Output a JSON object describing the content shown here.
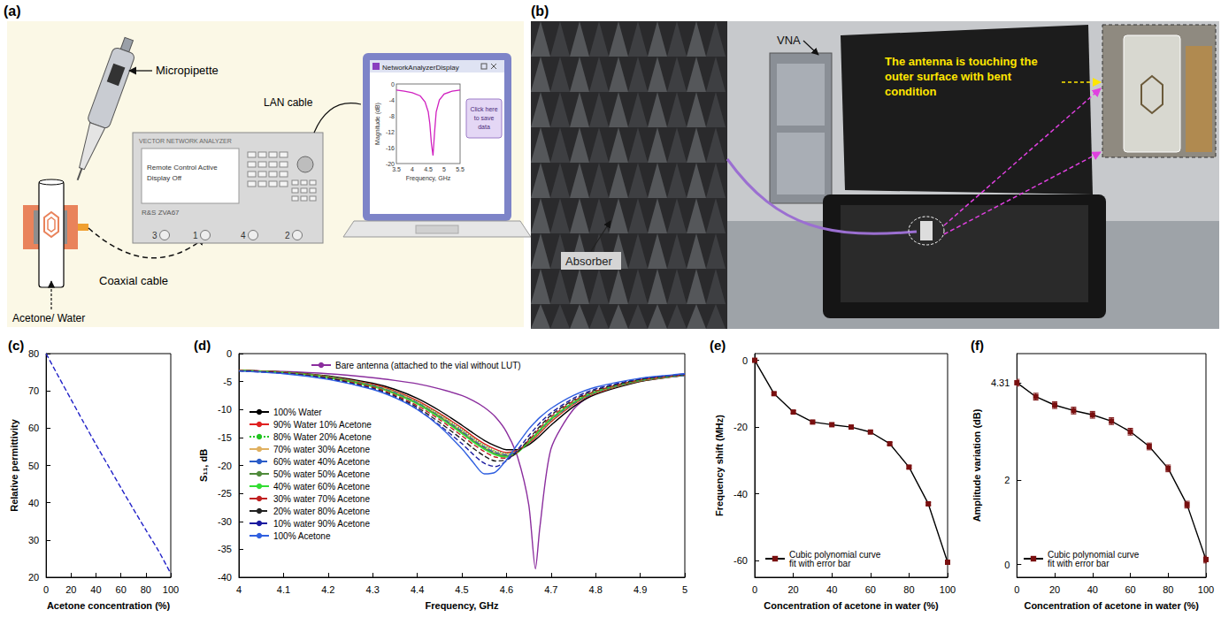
{
  "figure_a": {
    "panel": "(a)",
    "micropipette": "Micropipette",
    "liquid": "Acetone/ Water",
    "coaxial_cable": "Coaxial cable",
    "vna": {
      "header": "VECTOR NETWORK ANALYZER",
      "screen": [
        "Remote Control Active",
        "Display Off"
      ],
      "model": "R&S ZVA67",
      "ports": [
        "3",
        "1",
        "4",
        "2"
      ]
    },
    "lan_cable": "LAN cable",
    "laptop": {
      "window_title": "NetworkAnalyzerDisplay",
      "button": "Click here to save data",
      "inset": {
        "x_label": "Frequency, GHz",
        "y_label": "Magnitude (dB)",
        "x_ticks": [
          3.5,
          4,
          4.5,
          5,
          5.5
        ],
        "y_ticks": [
          0,
          -4,
          -8,
          -12,
          -16,
          -20
        ],
        "x": [
          3.5,
          3.75,
          4,
          4.25,
          4.4,
          4.5,
          4.55,
          4.6,
          4.65,
          4.7,
          4.75,
          4.85,
          5,
          5.25,
          5.5
        ],
        "y": [
          -1.5,
          -1.8,
          -2.2,
          -3,
          -4.5,
          -7,
          -10,
          -15,
          -18,
          -12,
          -7,
          -4,
          -2.5,
          -1.8,
          -1.5
        ]
      }
    }
  },
  "figure_b": {
    "panel": "(b)",
    "vna": "VNA",
    "absorber": "Absorber",
    "callout": "The antenna is touching the outer surface with bent condition"
  },
  "chart_data": [
    {
      "panel": "(c)",
      "type": "line",
      "x_label": "Acetone concentration (%)",
      "y_label": "Relative permittivity",
      "x": [
        0,
        10,
        20,
        30,
        40,
        50,
        60,
        70,
        80,
        90,
        100
      ],
      "xlim": [
        0,
        100
      ],
      "xticks": [
        0,
        20,
        40,
        60,
        80,
        100
      ],
      "ylim": [
        20,
        80
      ],
      "yticks": [
        20,
        30,
        40,
        50,
        60,
        70,
        80
      ],
      "series": [
        {
          "color": "#2323c8",
          "line_style": "dashed",
          "values": [
            80,
            73.8,
            67.7,
            61.6,
            55.6,
            49.8,
            44,
            38.3,
            32.7,
            27.2,
            21
          ]
        }
      ]
    },
    {
      "panel": "(d)",
      "type": "line",
      "x_label": "Frequency, GHz",
      "y_label": "S₁₁, dB",
      "x": [
        4,
        4.1,
        4.2,
        4.3,
        4.35,
        4.4,
        4.45,
        4.5,
        4.525,
        4.55,
        4.575,
        4.6,
        4.625,
        4.65,
        4.665,
        4.675,
        4.7,
        4.75,
        4.8,
        4.9,
        5
      ],
      "xlim": [
        4,
        5
      ],
      "xticks": [
        4,
        4.1,
        4.2,
        4.3,
        4.4,
        4.5,
        4.6,
        4.7,
        4.8,
        4.9,
        5
      ],
      "ylim": [
        -40,
        0
      ],
      "yticks": [
        -40,
        -35,
        -30,
        -25,
        -20,
        -15,
        -10,
        -5,
        0
      ],
      "legend": "upper left",
      "series": [
        {
          "name": "Bare antenna (attached to the vial without LUT)",
          "color": "#8b2e9e",
          "line_style": "solid",
          "values": [
            -3.0,
            -3.2,
            -3.6,
            -4.3,
            -4.8,
            -5.4,
            -6.3,
            -7.5,
            -8.4,
            -9.6,
            -11.3,
            -14.0,
            -18.5,
            -27.0,
            -38.5,
            -31.0,
            -17.0,
            -10.0,
            -7.0,
            -4.8,
            -3.6
          ]
        },
        {
          "name": "100% Water",
          "color": "#000000",
          "line_style": "solid",
          "values": [
            -3.0,
            -3.3,
            -4.0,
            -5.3,
            -6.4,
            -8.0,
            -10.2,
            -12.8,
            -14.2,
            -15.5,
            -16.5,
            -17.2,
            -17.2,
            -16.3,
            -15.4,
            -14.7,
            -12.8,
            -9.5,
            -7.3,
            -5.0,
            -3.9
          ]
        },
        {
          "name": "90% Water 10% Acetone",
          "color": "#e02020",
          "line_style": "solid",
          "values": [
            -3.0,
            -3.3,
            -4.1,
            -5.5,
            -6.7,
            -8.4,
            -10.7,
            -13.3,
            -14.8,
            -16.1,
            -17.1,
            -17.7,
            -17.3,
            -16.0,
            -15.0,
            -14.2,
            -12.2,
            -9.1,
            -7.1,
            -4.9,
            -3.9
          ]
        },
        {
          "name": "80% Water 20% Acetone",
          "color": "#22c422",
          "line_style": "dotted",
          "values": [
            -3.0,
            -3.3,
            -4.1,
            -5.6,
            -6.8,
            -8.6,
            -10.9,
            -13.6,
            -15.1,
            -16.4,
            -17.4,
            -17.9,
            -17.4,
            -15.9,
            -14.8,
            -14.0,
            -12.0,
            -9.0,
            -7.0,
            -4.9,
            -3.9
          ]
        },
        {
          "name": "70% water 30% Acetone",
          "color": "#e0b060",
          "line_style": "solid",
          "values": [
            -3.0,
            -3.4,
            -4.2,
            -5.7,
            -6.9,
            -8.7,
            -11.1,
            -13.8,
            -15.3,
            -16.6,
            -17.6,
            -18.0,
            -17.4,
            -15.8,
            -14.7,
            -13.9,
            -11.9,
            -8.9,
            -6.9,
            -4.8,
            -3.9
          ]
        },
        {
          "name": "60% water 40% Acetone",
          "color": "#2a5cc8",
          "line_style": "dashed",
          "values": [
            -3.0,
            -3.4,
            -4.2,
            -5.7,
            -7.0,
            -8.8,
            -11.2,
            -13.9,
            -15.4,
            -16.7,
            -17.7,
            -18.1,
            -17.5,
            -15.8,
            -14.6,
            -13.8,
            -11.8,
            -8.9,
            -6.9,
            -4.8,
            -3.9
          ]
        },
        {
          "name": "50% water 50% Acetone",
          "color": "#4f8a3a",
          "line_style": "solid",
          "values": [
            -3.0,
            -3.4,
            -4.2,
            -5.8,
            -7.1,
            -8.9,
            -11.3,
            -14.1,
            -15.6,
            -16.9,
            -17.9,
            -18.3,
            -17.6,
            -15.8,
            -14.6,
            -13.7,
            -11.7,
            -8.8,
            -6.8,
            -4.8,
            -3.8
          ]
        },
        {
          "name": "40% water 60% Acetone",
          "color": "#33dd33",
          "line_style": "solid",
          "values": [
            -3.0,
            -3.4,
            -4.3,
            -5.9,
            -7.2,
            -9.0,
            -11.5,
            -14.3,
            -15.8,
            -17.1,
            -18.1,
            -18.5,
            -17.7,
            -15.8,
            -14.5,
            -13.6,
            -11.6,
            -8.7,
            -6.8,
            -4.7,
            -3.8
          ]
        },
        {
          "name": "30% water 70% Acetone",
          "color": "#c02020",
          "line_style": "dashed",
          "values": [
            -3.0,
            -3.4,
            -4.3,
            -6.0,
            -7.4,
            -9.3,
            -11.8,
            -14.7,
            -16.2,
            -17.5,
            -18.5,
            -18.7,
            -17.6,
            -15.5,
            -14.2,
            -13.3,
            -11.3,
            -8.5,
            -6.7,
            -4.7,
            -3.8
          ]
        },
        {
          "name": "20% water 80% Acetone",
          "color": "#222222",
          "line_style": "dashed",
          "values": [
            -3.1,
            -3.5,
            -4.4,
            -6.2,
            -7.6,
            -9.6,
            -12.3,
            -15.3,
            -16.9,
            -18.3,
            -19.2,
            -19.0,
            -17.6,
            -15.3,
            -13.9,
            -13.0,
            -11.0,
            -8.3,
            -6.5,
            -4.6,
            -3.7
          ]
        },
        {
          "name": "10% water 90% Acetone",
          "color": "#1a1aa0",
          "line_style": "dashed",
          "values": [
            -3.1,
            -3.5,
            -4.5,
            -6.3,
            -7.8,
            -9.9,
            -12.8,
            -16.1,
            -18.0,
            -19.6,
            -20.2,
            -19.2,
            -17.2,
            -14.7,
            -13.3,
            -12.4,
            -10.6,
            -8.0,
            -6.3,
            -4.5,
            -3.7
          ]
        },
        {
          "name": "100% Acetone",
          "color": "#3060e0",
          "line_style": "solid",
          "values": [
            -3.1,
            -3.6,
            -4.6,
            -6.4,
            -7.9,
            -10.0,
            -13.0,
            -17.0,
            -19.4,
            -21.5,
            -21.2,
            -19.0,
            -16.2,
            -13.5,
            -12.2,
            -11.4,
            -9.8,
            -7.5,
            -6.0,
            -4.4,
            -3.6
          ]
        }
      ]
    },
    {
      "panel": "(e)",
      "type": "line",
      "x_label": "Concentration of acetone in water (%)",
      "y_label": "Frequency shift (MHz)",
      "x": [
        0,
        10,
        20,
        30,
        40,
        50,
        60,
        70,
        80,
        90,
        100
      ],
      "xlim": [
        0,
        100
      ],
      "xticks": [
        0,
        20,
        40,
        60,
        80,
        100
      ],
      "ylim": [
        -65,
        2
      ],
      "yticks": [
        -60,
        -40,
        -20,
        0
      ],
      "legend": "lower left",
      "series": [
        {
          "name": "Cubic polynomial curve fit with error bar",
          "color": "#000000",
          "marker": "square",
          "values": [
            0,
            -10,
            -15.5,
            -18.5,
            -19.3,
            -20,
            -21.5,
            -25,
            -32,
            -43,
            -60.5
          ],
          "errors": [
            0.4,
            0.4,
            0.4,
            0.4,
            0.4,
            0.4,
            0.4,
            0.4,
            0.4,
            0.4,
            0.4
          ]
        }
      ]
    },
    {
      "panel": "(f)",
      "type": "line",
      "x_label": "Concentration of acetone in water (%)",
      "y_label": "Amplitude variation (dB)",
      "x": [
        0,
        10,
        20,
        30,
        40,
        50,
        60,
        70,
        80,
        90,
        100
      ],
      "xlim": [
        0,
        100
      ],
      "xticks": [
        0,
        20,
        40,
        60,
        80,
        100
      ],
      "ylim": [
        -0.3,
        5
      ],
      "yticks": [
        0,
        2,
        4.31
      ],
      "legend": "lower left",
      "series": [
        {
          "name": "Cubic polynomial curve fit with error bar",
          "color": "#000000",
          "marker": "square",
          "values": [
            4.31,
            3.98,
            3.78,
            3.65,
            3.55,
            3.4,
            3.15,
            2.8,
            2.28,
            1.42,
            0.12
          ],
          "errors": [
            0.08,
            0.08,
            0.08,
            0.08,
            0.08,
            0.08,
            0.08,
            0.08,
            0.08,
            0.08,
            0.08
          ]
        }
      ]
    }
  ]
}
